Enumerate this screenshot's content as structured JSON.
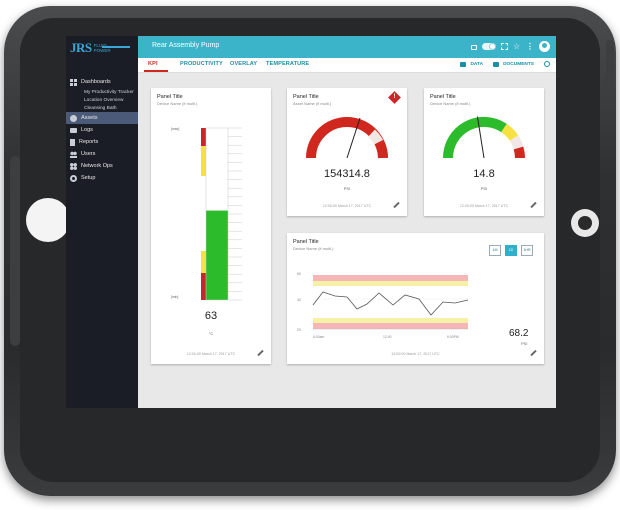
{
  "app": {
    "logo_main": "JRS",
    "logo_sub_1": "FLUID",
    "logo_sub_2": "POWER",
    "title": "Rear Assembly Pump"
  },
  "sidebar": {
    "items": [
      {
        "label": "Dashboards",
        "icon": "grid-icon"
      },
      {
        "label": "My Productivity Tracker"
      },
      {
        "label": "Location Overview"
      },
      {
        "label": "Cleansing Bath"
      },
      {
        "label": "Assets",
        "icon": "search-icon",
        "active": true
      },
      {
        "label": "Logs",
        "icon": "folder-icon"
      },
      {
        "label": "Reports",
        "icon": "document-icon"
      },
      {
        "label": "Users",
        "icon": "users-icon"
      },
      {
        "label": "Network Ops",
        "icon": "network-icon"
      },
      {
        "label": "Setup",
        "icon": "gear-icon"
      }
    ]
  },
  "tabs": [
    {
      "label": "KPI",
      "active": true
    },
    {
      "label": "PRODUCTIVITY"
    },
    {
      "label": "OVERLAY"
    },
    {
      "label": "TEMPERATURE"
    }
  ],
  "tab_actions": {
    "data": "DATA",
    "documents": "DOCUMENTS"
  },
  "panels": {
    "thermo": {
      "title": "Panel Title",
      "subtitle": "Device Name (if multi.)",
      "max_label": "[max]",
      "min_label": "[min]",
      "value": "63",
      "unit": "°C",
      "footer": "12:00:00 March 17, 2017 UTC",
      "level": 0.52
    },
    "gauge1": {
      "title": "Panel Title",
      "subtitle": "Asset Name (if multi.)",
      "value": "154314.8",
      "unit": "PSI",
      "footer": "12:00:00 March 17, 2017 UTC",
      "needle_fraction": 0.6
    },
    "gauge2": {
      "title": "Panel Title",
      "subtitle": "Device Name (if multi.)",
      "value": "14.8",
      "unit": "PSI",
      "footer": "12:00:00 March 17, 2017 UTC",
      "needle_fraction": 0.45
    },
    "trend": {
      "title": "Panel Title",
      "subtitle": "Device Name (if multi.)",
      "ranges": [
        "1M",
        "1D",
        "1HR"
      ],
      "selected_range": "1D",
      "y_ticks": [
        "60",
        "40",
        "20"
      ],
      "x_ticks": [
        "6:00am",
        "12:00",
        "6:00PM"
      ],
      "current_value": "68.2",
      "current_unit": "PSI",
      "footer": "12:00:00 March 17, 2017 UTC"
    }
  },
  "colors": {
    "header": "#3bb3c9",
    "sidebar": "#1a1d26",
    "alert_red": "#d0281e",
    "ok_green": "#2bbb2b",
    "warn_yellow": "#f5e142"
  }
}
